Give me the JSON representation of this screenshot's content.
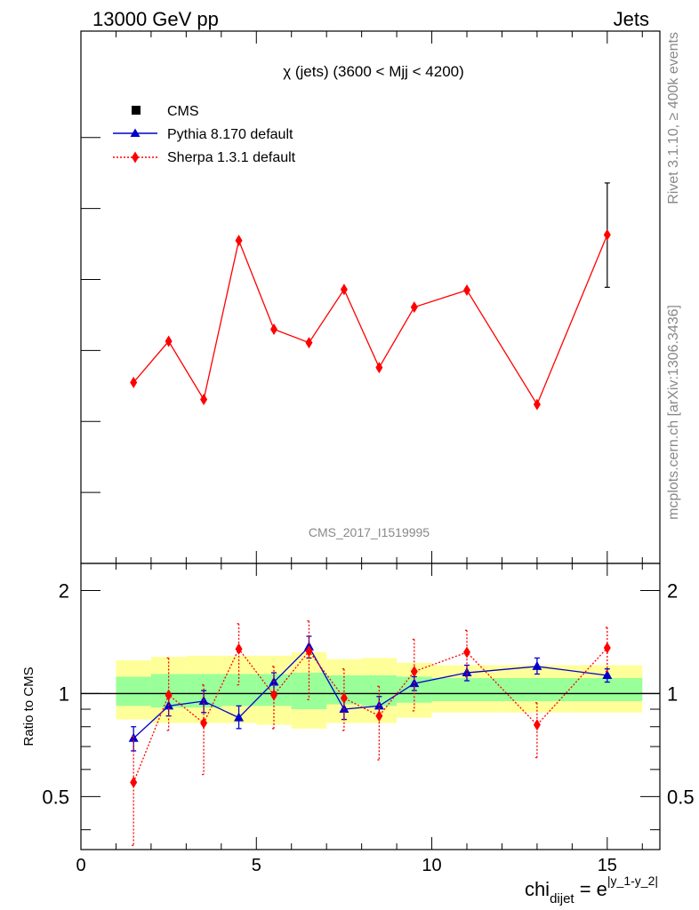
{
  "header": {
    "left": "13000 GeV pp",
    "right": "Jets"
  },
  "side": {
    "rivet": "Rivet 3.1.10, ≥ 400k events",
    "mcplots": "mcplots.cern.ch [arXiv:1306.3436]"
  },
  "chart_data": [
    {
      "type": "line",
      "panel": "main",
      "title": "χ (jets) (3600 < Mjj < 4200)",
      "watermark": "CMS_2017_I1519995",
      "legend_placement": "top-left",
      "legend": [
        {
          "label": "CMS",
          "marker": "square",
          "color": "#000000"
        },
        {
          "label": "Pythia 8.170 default",
          "marker": "triangle",
          "color": "#0000cc",
          "line": "solid"
        },
        {
          "label": "Sherpa 1.3.1 default",
          "marker": "diamond",
          "color": "#ff0000",
          "line": "dotted"
        }
      ],
      "x": [
        1.5,
        2.5,
        3.5,
        4.5,
        5.5,
        6.5,
        7.5,
        8.5,
        9.5,
        11,
        13,
        15
      ],
      "series": [
        {
          "name": "Sherpa 1.3.1 default",
          "color": "#ff0000",
          "values": [
            0.0755,
            0.0813,
            0.0731,
            0.0955,
            0.083,
            0.0811,
            0.0886,
            0.0776,
            0.0861,
            0.0885,
            0.0724,
            0.0963
          ],
          "err_hi": [
            0,
            0,
            0,
            0,
            0,
            0,
            0,
            0,
            0,
            0,
            0,
            0.0073
          ],
          "err_lo": [
            0,
            0,
            0,
            0,
            0,
            0,
            0,
            0,
            0,
            0,
            0,
            0.0074
          ]
        }
      ],
      "ylim": [
        0.05,
        0.125
      ],
      "y_major_ticks": [
        0.06,
        0.07,
        0.08,
        0.09,
        0.1,
        0.11
      ],
      "grid": false
    },
    {
      "type": "line",
      "panel": "ratio",
      "ylabel": "Ratio to CMS",
      "xlabel": "chi",
      "xlabel_sub": "dijet",
      "xlabel_eq": " = e",
      "xlabel_sup": "|y_1-y_2|",
      "xlim": [
        0,
        16.5
      ],
      "x_tick_labels": [
        "0",
        "5",
        "10",
        "15"
      ],
      "x_ticks": [
        0,
        5,
        10,
        15
      ],
      "ylim": [
        0.35,
        2.4
      ],
      "log_scale_y": true,
      "y_tick_labels": [
        "0.5",
        "1",
        "2"
      ],
      "y_ticks": [
        0.5,
        1,
        2
      ],
      "bands": {
        "edges": [
          1,
          2,
          3,
          4,
          5,
          6,
          7,
          8,
          9,
          10,
          12,
          14,
          16
        ],
        "inner": {
          "color": "#99ff99",
          "lo": [
            0.92,
            0.91,
            0.91,
            0.92,
            0.92,
            0.9,
            0.93,
            0.92,
            0.94,
            0.95,
            0.95,
            0.95
          ],
          "hi": [
            1.12,
            1.14,
            1.14,
            1.14,
            1.14,
            1.15,
            1.13,
            1.13,
            1.12,
            1.11,
            1.11,
            1.11
          ]
        },
        "outer": {
          "color": "#ffff99",
          "lo": [
            0.84,
            0.82,
            0.82,
            0.82,
            0.81,
            0.79,
            0.82,
            0.82,
            0.85,
            0.88,
            0.88,
            0.88
          ],
          "hi": [
            1.25,
            1.28,
            1.29,
            1.29,
            1.29,
            1.32,
            1.26,
            1.27,
            1.23,
            1.21,
            1.21,
            1.21
          ]
        }
      },
      "x": [
        1.5,
        2.5,
        3.5,
        4.5,
        5.5,
        6.5,
        7.5,
        8.5,
        9.5,
        11,
        13,
        15
      ],
      "series": [
        {
          "name": "Pythia 8.170 default",
          "color": "#0000cc",
          "style": "solid",
          "values": [
            0.74,
            0.92,
            0.95,
            0.85,
            1.08,
            1.37,
            0.9,
            0.92,
            1.07,
            1.15,
            1.2,
            1.13
          ],
          "err_hi": [
            0.8,
            0.98,
            1.02,
            0.92,
            1.15,
            1.47,
            0.96,
            0.98,
            1.12,
            1.21,
            1.27,
            1.18
          ],
          "err_lo": [
            0.68,
            0.86,
            0.88,
            0.79,
            1.01,
            1.27,
            0.84,
            0.86,
            1.02,
            1.09,
            1.14,
            1.08
          ]
        },
        {
          "name": "Sherpa 1.3.1 default",
          "color": "#ff0000",
          "style": "dotted",
          "values": [
            0.55,
            0.99,
            0.82,
            1.35,
            0.99,
            1.33,
            0.97,
            0.86,
            1.16,
            1.32,
            0.81,
            1.36
          ],
          "err_hi": [
            0.75,
            1.27,
            1.06,
            1.6,
            1.2,
            1.63,
            1.18,
            1.05,
            1.44,
            1.53,
            0.94,
            1.56
          ],
          "err_lo": [
            0.36,
            0.78,
            0.58,
            1.06,
            0.79,
            0.96,
            0.78,
            0.64,
            0.89,
            1.12,
            0.65,
            1.16
          ]
        }
      ]
    }
  ]
}
